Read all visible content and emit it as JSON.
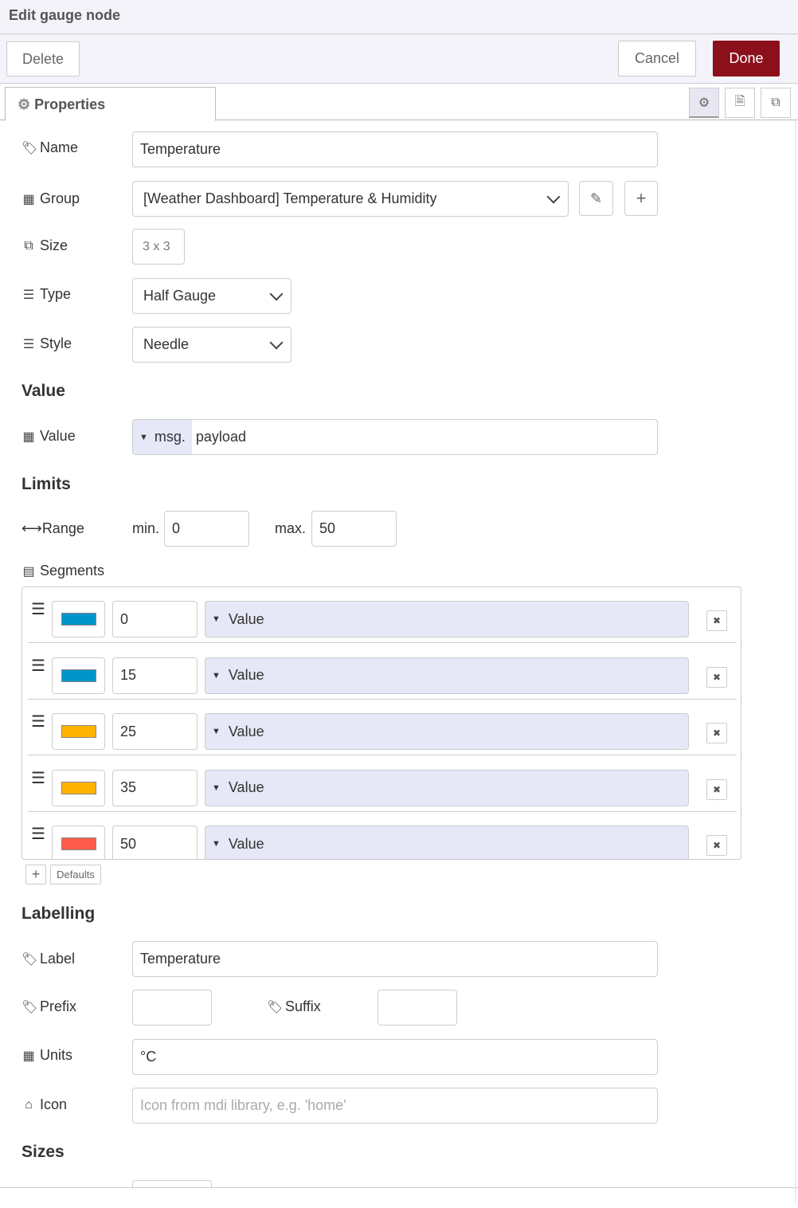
{
  "title": "Edit gauge node",
  "toolbar": {
    "delete": "Delete",
    "cancel": "Cancel",
    "done": "Done",
    "done_color": "#8c101c"
  },
  "tabs": {
    "properties": "Properties"
  },
  "fields": {
    "name": {
      "label": "Name",
      "value": "Temperature"
    },
    "group": {
      "label": "Group",
      "value": "[Weather Dashboard] Temperature & Humidity"
    },
    "size": {
      "label": "Size",
      "value": "3 x 3"
    },
    "type": {
      "label": "Type",
      "value": "Half Gauge"
    },
    "style": {
      "label": "Style",
      "value": "Needle"
    }
  },
  "sections": {
    "value": "Value",
    "limits": "Limits",
    "labelling": "Labelling",
    "sizes": "Sizes"
  },
  "value": {
    "label": "Value",
    "prefix": "msg.",
    "value": "payload"
  },
  "range": {
    "label": "Range",
    "min_label": "min.",
    "min": "0",
    "max_label": "max.",
    "max": "50"
  },
  "segments": {
    "label": "Segments",
    "add": "+",
    "defaults": "Defaults",
    "items": [
      {
        "color": "#0095c8",
        "from": "0",
        "type": "Value"
      },
      {
        "color": "#0095c8",
        "from": "15",
        "type": "Value"
      },
      {
        "color": "#ffb300",
        "from": "25",
        "type": "Value"
      },
      {
        "color": "#ffb300",
        "from": "35",
        "type": "Value"
      },
      {
        "color": "#ff5c4c",
        "from": "50",
        "type": "Value"
      }
    ]
  },
  "labelling": {
    "label": {
      "label": "Label",
      "value": "Temperature"
    },
    "prefix": {
      "label": "Prefix",
      "value": ""
    },
    "suffix": {
      "label": "Suffix",
      "value": ""
    },
    "units": {
      "label": "Units",
      "value": "°C"
    },
    "icon": {
      "label": "Icon",
      "placeholder": "Icon from mdi library, e.g. 'home'"
    }
  }
}
